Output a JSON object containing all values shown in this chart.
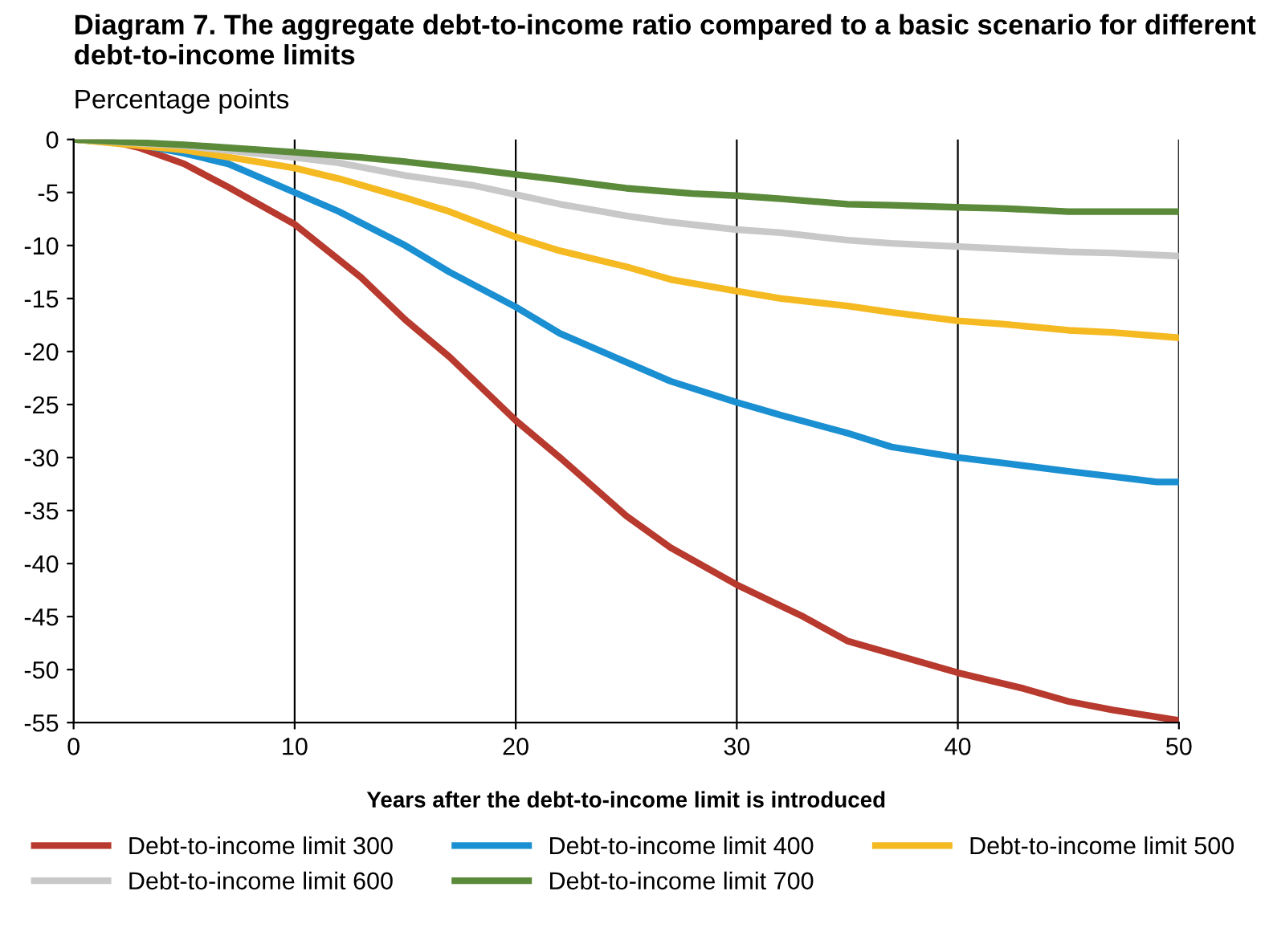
{
  "chart_data": {
    "type": "line",
    "title": "Diagram 7. The aggregate debt-to-income ratio compared to a basic scenario for different debt-to-income limits",
    "subtitle": "Percentage points",
    "xlabel": "Years after the debt-to-income limit is introduced",
    "xlim": [
      0,
      50
    ],
    "xticks": [
      0,
      10,
      20,
      30,
      40,
      50
    ],
    "ylim": [
      -55,
      0
    ],
    "yticks": [
      0,
      -5,
      -10,
      -15,
      -20,
      -25,
      -30,
      -35,
      -40,
      -45,
      -50,
      -55
    ],
    "grid": "x",
    "legend": "bottom",
    "marker": "none",
    "line_style": "solid",
    "series": [
      {
        "name": "Debt-to-income limit 300",
        "color": "#b83a2e",
        "x": [
          0,
          2,
          3,
          5,
          7,
          10,
          13,
          15,
          17,
          20,
          22,
          25,
          27,
          30,
          33,
          35,
          37,
          40,
          43,
          45,
          47,
          50
        ],
        "values": [
          0,
          -0.3,
          -0.8,
          -2.3,
          -4.5,
          -8,
          -13,
          -17,
          -20.5,
          -26.5,
          -30,
          -35.5,
          -38.5,
          -42,
          -45,
          -47.3,
          -48.5,
          -50.3,
          -51.8,
          -53,
          -53.8,
          -54.8
        ]
      },
      {
        "name": "Debt-to-income limit 400",
        "color": "#1a8fd1",
        "x": [
          0,
          3,
          5,
          7,
          10,
          12,
          15,
          17,
          20,
          22,
          25,
          27,
          30,
          32,
          35,
          37,
          40,
          42,
          45,
          47,
          49,
          50
        ],
        "values": [
          0,
          -0.5,
          -1.3,
          -2.3,
          -5,
          -6.8,
          -10,
          -12.5,
          -15.8,
          -18.3,
          -21,
          -22.8,
          -24.8,
          -26,
          -27.7,
          -29,
          -30,
          -30.5,
          -31.3,
          -31.8,
          -32.3,
          -32.3
        ]
      },
      {
        "name": "Debt-to-income limit 500",
        "color": "#f5b921",
        "x": [
          0,
          5,
          8,
          10,
          12,
          15,
          17,
          20,
          22,
          25,
          27,
          30,
          32,
          35,
          37,
          40,
          42,
          45,
          47,
          50
        ],
        "values": [
          0,
          -1,
          -2,
          -2.7,
          -3.7,
          -5.5,
          -6.8,
          -9.2,
          -10.5,
          -12,
          -13.2,
          -14.3,
          -15,
          -15.7,
          -16.3,
          -17.1,
          -17.4,
          -18,
          -18.2,
          -18.7
        ]
      },
      {
        "name": "Debt-to-income limit 600",
        "color": "#c8c8c8",
        "x": [
          0,
          5,
          10,
          12,
          15,
          18,
          20,
          22,
          25,
          27,
          30,
          32,
          35,
          37,
          40,
          42,
          45,
          47,
          50
        ],
        "values": [
          0,
          -0.6,
          -1.7,
          -2.2,
          -3.4,
          -4.3,
          -5.2,
          -6.1,
          -7.2,
          -7.8,
          -8.5,
          -8.8,
          -9.5,
          -9.8,
          -10.1,
          -10.3,
          -10.6,
          -10.7,
          -11
        ]
      },
      {
        "name": "Debt-to-income limit 700",
        "color": "#5a8a3a",
        "x": [
          0,
          5,
          10,
          13,
          15,
          18,
          20,
          22,
          25,
          28,
          30,
          32,
          35,
          37,
          40,
          42,
          45,
          50
        ],
        "values": [
          0,
          -0.5,
          -1.2,
          -1.7,
          -2.1,
          -2.8,
          -3.3,
          -3.8,
          -4.6,
          -5.1,
          -5.3,
          -5.6,
          -6.1,
          -6.2,
          -6.4,
          -6.5,
          -6.8,
          -6.8
        ]
      }
    ]
  }
}
